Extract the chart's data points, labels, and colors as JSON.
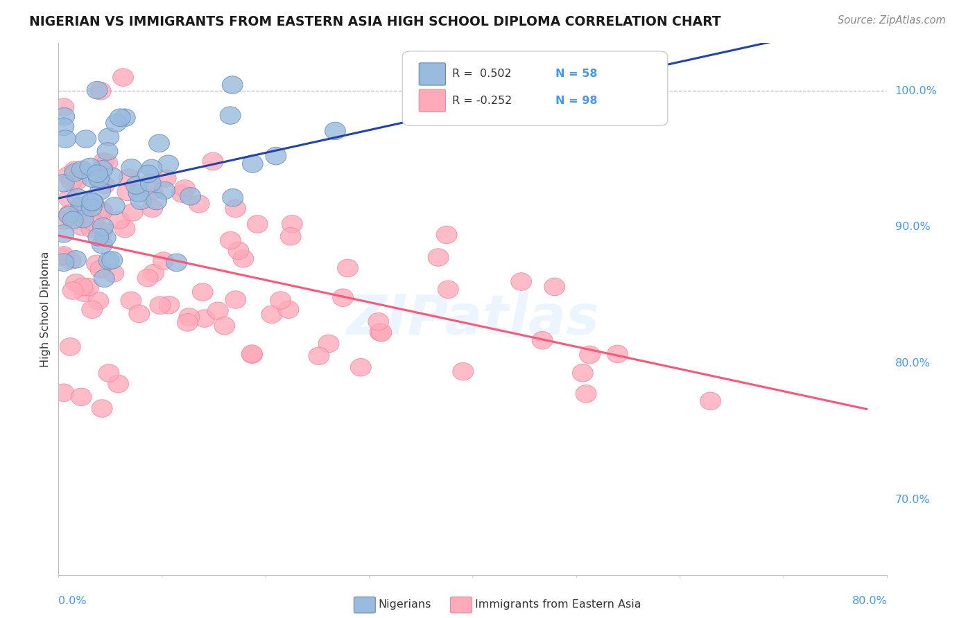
{
  "title": "NIGERIAN VS IMMIGRANTS FROM EASTERN ASIA HIGH SCHOOL DIPLOMA CORRELATION CHART",
  "source": "Source: ZipAtlas.com",
  "ylabel": "High School Diploma",
  "color_blue": "#99BBDD",
  "color_pink": "#FFAABB",
  "color_blue_line": "#2244AA",
  "color_pink_line": "#FF5577",
  "color_ytick": "#4499EE",
  "R_blue": 0.502,
  "N_blue": 58,
  "R_pink": -0.252,
  "N_pink": 98,
  "xlim": [
    0.0,
    0.8
  ],
  "ylim": [
    0.645,
    1.035
  ],
  "yticks": [
    0.7,
    0.8,
    0.9,
    1.0
  ],
  "ytick_labels": [
    "70.0%",
    "80.0%",
    "90.0%",
    "100.0%"
  ],
  "hline_y": 1.0,
  "watermark": "ZIPatlas"
}
